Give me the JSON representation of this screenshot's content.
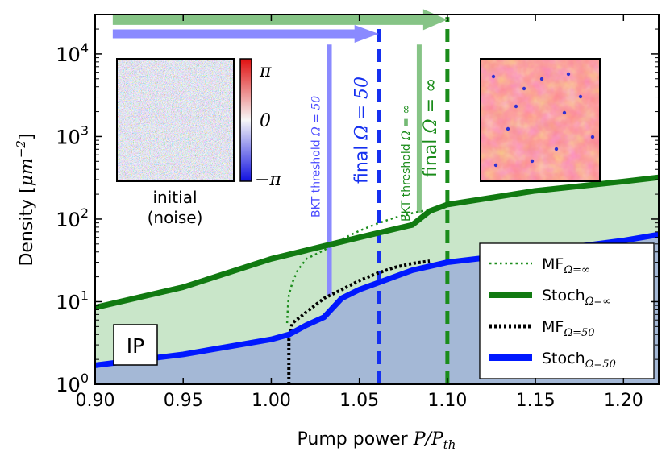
{
  "chart_data": {
    "type": "line",
    "xlabel": "Pump power",
    "xlabel_math": "P/P",
    "xlabel_sub": "th",
    "ylabel": "Density [",
    "ylabel_math": "μm",
    "ylabel_exp": "−2",
    "ylabel_close": "]",
    "xlim": [
      0.9,
      1.22
    ],
    "ylim": [
      1,
      30000
    ],
    "yscale": "log",
    "x_ticks": [
      0.9,
      0.95,
      1.0,
      1.05,
      1.1,
      1.15,
      1.2
    ],
    "x_tick_labels": [
      "0.90",
      "0.95",
      "1.00",
      "1.05",
      "1.10",
      "1.15",
      "1.20"
    ],
    "y_ticks": [
      1,
      10,
      100,
      1000,
      10000
    ],
    "y_tick_bases": [
      "10",
      "10",
      "10",
      "10",
      "10"
    ],
    "y_tick_exps": [
      "0",
      "1",
      "2",
      "3",
      "4"
    ],
    "series": [
      {
        "key": "mf_inf",
        "name_main": "MF",
        "name_sub": "Ω=∞",
        "style": "dotted",
        "color": "#1a8c1a",
        "x": [
          1.009,
          1.0095,
          1.01,
          1.012,
          1.015,
          1.02,
          1.03,
          1.04,
          1.05,
          1.06,
          1.07,
          1.08,
          1.09
        ],
        "y": [
          5.5,
          9,
          12,
          17,
          24,
          33,
          42,
          57,
          72,
          88,
          104,
          118,
          130
        ]
      },
      {
        "key": "stoch_inf",
        "name_main": "Stoch",
        "name_sub": "Ω=∞",
        "style": "solid-thick",
        "color": "#117a11",
        "x": [
          0.9,
          0.95,
          1.0,
          1.05,
          1.08,
          1.09,
          1.1,
          1.15,
          1.2,
          1.22
        ],
        "y": [
          8.5,
          15,
          33,
          60,
          85,
          125,
          150,
          220,
          285,
          320
        ]
      },
      {
        "key": "mf_50",
        "name_main": "MF",
        "name_sub": "Ω=50",
        "style": "dotted",
        "color": "#000000",
        "x": [
          1.01,
          1.01,
          1.012,
          1.02,
          1.03,
          1.04,
          1.05,
          1.06,
          1.07,
          1.08,
          1.09
        ],
        "y": [
          1.0,
          3.5,
          5.5,
          7.5,
          11,
          14,
          18,
          22,
          26,
          29,
          31
        ]
      },
      {
        "key": "stoch_50",
        "name_main": "Stoch",
        "name_sub": "Ω=50",
        "style": "solid-thick",
        "color": "#0018ff",
        "x": [
          0.9,
          0.95,
          1.0,
          1.01,
          1.02,
          1.03,
          1.04,
          1.05,
          1.08,
          1.1,
          1.15,
          1.2,
          1.22
        ],
        "y": [
          1.7,
          2.3,
          3.5,
          4.0,
          5.2,
          6.5,
          11,
          14,
          24,
          30,
          40,
          55,
          65
        ]
      }
    ],
    "fills": [
      {
        "between": [
          "stoch_inf",
          "stoch_50"
        ],
        "color": "#c9e6c9"
      },
      {
        "below": "stoch_50",
        "color": "#a4b8d6"
      }
    ],
    "vlines": [
      {
        "key": "bkt50",
        "x": 1.033,
        "y_from": 12,
        "y_to": 13000,
        "color": "#8a8aff",
        "style": "solid",
        "label_main": "BKT threshold",
        "label_math": "Ω = 50",
        "label_color": "#4a4aff"
      },
      {
        "key": "final50",
        "x": 1.061,
        "y_from": 1.0,
        "y_to": 20000,
        "color": "#1530f0",
        "style": "dashed",
        "label_main": "final",
        "label_math": "Ω = 50",
        "label_color": "#1530f0"
      },
      {
        "key": "bkt_inf",
        "x": 1.084,
        "y_from": 120,
        "y_to": 13000,
        "color": "#86c486",
        "style": "solid",
        "label_main": "BKT threshold",
        "label_math": "Ω = ∞",
        "label_color": "#1a8c1a"
      },
      {
        "key": "final_inf",
        "x": 1.1,
        "y_from": 1.0,
        "y_to": 28000,
        "color": "#1a8c1a",
        "style": "dashed",
        "label_main": "final",
        "label_math": "Ω = ∞",
        "label_color": "#1a8c1a"
      }
    ],
    "arrows": [
      {
        "key": "arrow_green",
        "x_from": 0.91,
        "x_to": 1.1,
        "y": 26000,
        "color": "#86c486"
      },
      {
        "key": "arrow_blue",
        "x_from": 0.91,
        "x_to": 1.061,
        "y": 17500,
        "color": "#8a8aff"
      }
    ],
    "insets": {
      "initial_caption_line1": "initial",
      "initial_caption_line2": "(noise)",
      "colorbar_labels": [
        "π",
        "0",
        "−π"
      ]
    },
    "region_label": "IP",
    "legend": {
      "placement": "lower-right"
    },
    "grid": false
  }
}
